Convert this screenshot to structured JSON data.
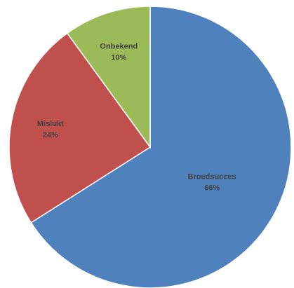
{
  "chart_data": {
    "type": "pie",
    "start_angle_deg": 0,
    "direction": "clockwise",
    "slices": [
      {
        "label": "Broedsucces",
        "value": 66,
        "value_label": "66%",
        "color": "#4F81BD"
      },
      {
        "label": "Mislukt",
        "value": 24,
        "value_label": "24%",
        "color": "#C0504D"
      },
      {
        "label": "Onbekend",
        "value": 10,
        "value_label": "10%",
        "color": "#9BBB59"
      }
    ],
    "edge_color": "#FFFFFF",
    "label_color": "#404040"
  }
}
